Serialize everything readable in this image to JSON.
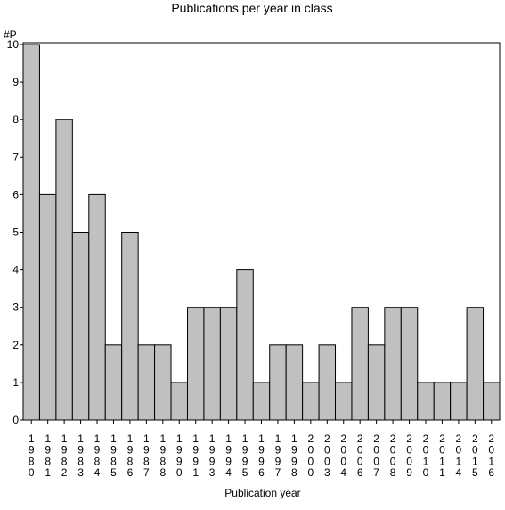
{
  "chart_data": {
    "type": "bar",
    "title": "Publications per year in class",
    "xlabel": "Publication year",
    "ylabel": "#P",
    "ylim": [
      0,
      10
    ],
    "yticks": [
      0,
      1,
      2,
      3,
      4,
      5,
      6,
      7,
      8,
      9,
      10
    ],
    "grid": false,
    "legend": "none",
    "bar_color": "#c0c0c0",
    "categories": [
      "1980",
      "1981",
      "1982",
      "1983",
      "1984",
      "1985",
      "1986",
      "1987",
      "1988",
      "1990",
      "1991",
      "1993",
      "1994",
      "1995",
      "1996",
      "1997",
      "1998",
      "2000",
      "2003",
      "2004",
      "2006",
      "2007",
      "2008",
      "2009",
      "2010",
      "2011",
      "2014",
      "2015",
      "2016"
    ],
    "values": [
      10,
      6,
      8,
      5,
      6,
      2,
      5,
      2,
      2,
      1,
      3,
      3,
      3,
      4,
      1,
      2,
      2,
      1,
      2,
      1,
      3,
      2,
      3,
      3,
      1,
      1,
      1,
      3,
      1
    ]
  }
}
